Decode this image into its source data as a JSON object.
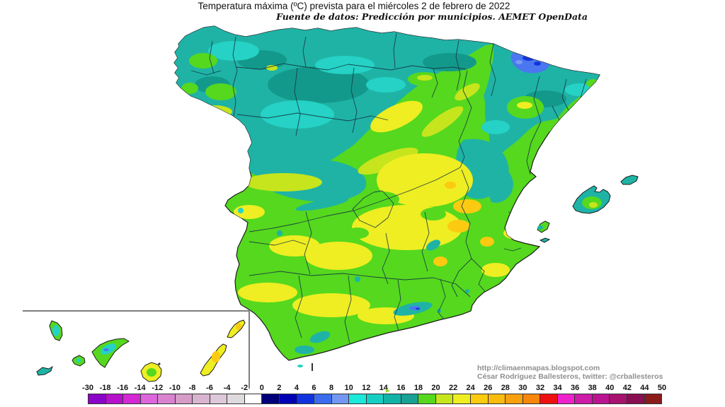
{
  "header": {
    "title": "Temperatura máxima (ºC) prevista para el miércoles 2 de febrero de 2022",
    "subtitle": "Fuente de datos: Predicción por municipios. AEMET OpenData"
  },
  "attribution": {
    "url": "http://climaenmapas.blogspot.com",
    "author": "César Rodríguez Ballesteros, twitter: @crballesteros"
  },
  "colorbar": {
    "labels": [
      "-30",
      "-18",
      "-16",
      "-14",
      "-12",
      "-10",
      "-8",
      "-6",
      "-4",
      "-2",
      "0",
      "2",
      "4",
      "6",
      "8",
      "10",
      "12",
      "14",
      "16",
      "18",
      "20",
      "22",
      "24",
      "26",
      "28",
      "30",
      "32",
      "34",
      "36",
      "38",
      "40",
      "42",
      "44",
      "50"
    ],
    "cell_colors": [
      "#8a05c8",
      "#b511cc",
      "#d428d4",
      "#dd66dd",
      "#d983cf",
      "#d49cc6",
      "#d8b4d0",
      "#ddc8da",
      "#dedade",
      "#ffffff",
      "#00007a",
      "#0000b4",
      "#1133dd",
      "#3b6cee",
      "#7397f2",
      "#1ce9d9",
      "#16cfc4",
      "#12b2a7",
      "#18a194",
      "#55d81e",
      "#c6e51c",
      "#eeee22",
      "#fcca10",
      "#fbbb0e",
      "#f9a00e",
      "#f8860a",
      "#ee1111",
      "#ee22cc",
      "#cc1ca8",
      "#bb1490",
      "#a8126f",
      "#8a0e52",
      "#8b1a1a"
    ]
  },
  "map": {
    "palette": {
      "sea": "#ffffff",
      "teal": "#1fb3a6",
      "teal_dark": "#13998b",
      "cyan": "#25d2c5",
      "green": "#55d81e",
      "yellow_green": "#c6e51c",
      "yellow": "#eeee22",
      "gold": "#fcca10",
      "blue": "#4a77ef",
      "blue_dark": "#1535dd",
      "blue_light": "#7a9af2",
      "coast": "#1c1c1c",
      "border": "#173540",
      "inset_frame": "#7d7d7d"
    }
  }
}
